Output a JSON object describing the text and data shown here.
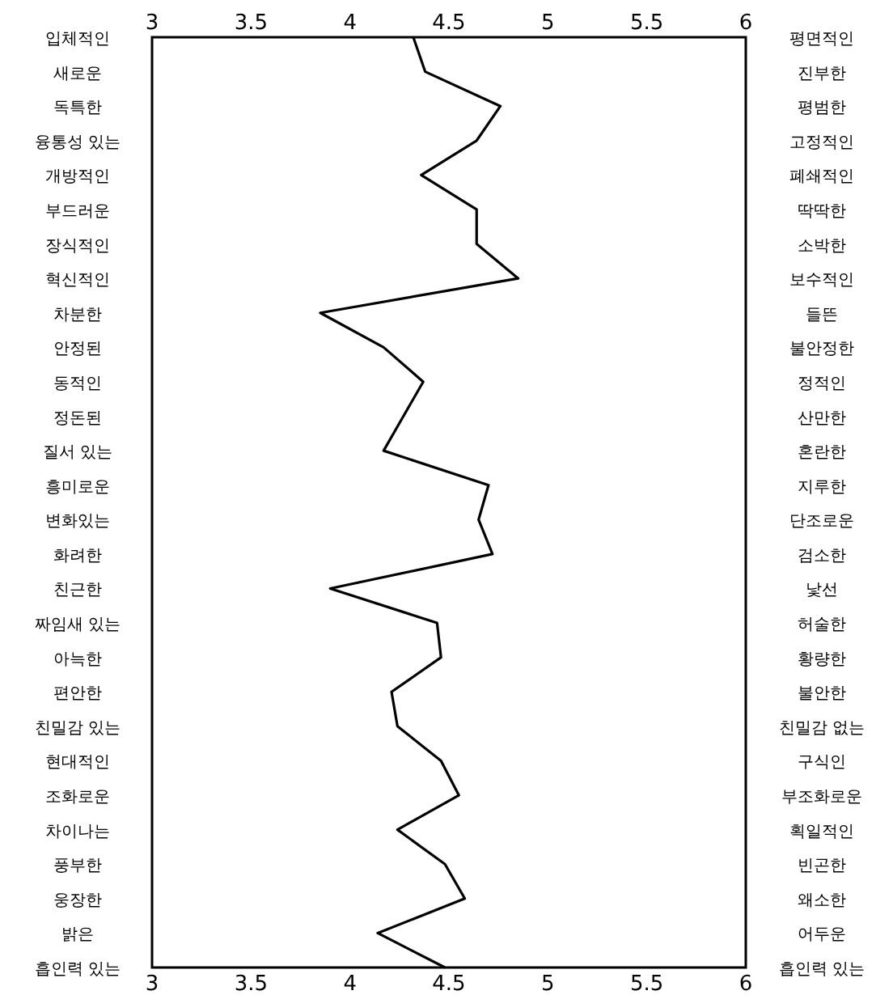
{
  "chart_data": {
    "type": "line",
    "orientation": "horizontal",
    "categories": [
      "입체적인",
      "새로운",
      "독특한",
      "융통성 있는",
      "개방적인",
      "부드러운",
      "장식적인",
      "혁신적인",
      "차분한",
      "안정된",
      "동적인",
      "정돈된",
      "질서 있는",
      "흥미로운",
      "변화있는",
      "화려한",
      "친근한",
      "짜임새 있는",
      "아늑한",
      "편안한",
      "친밀감 있는",
      "현대적인",
      "조화로운",
      "차이나는",
      "풍부한",
      "웅장한",
      "밝은",
      "흡인력 있는"
    ],
    "y2_categories": [
      "평면적인",
      "진부한",
      "평범한",
      "고정적인",
      "폐쇄적인",
      "딱딱한",
      "소박한",
      "보수적인",
      "들뜬",
      "불안정한",
      "정적인",
      "산만한",
      "혼란한",
      "지루한",
      "단조로운",
      "검소한",
      "낯선",
      "허술한",
      "황량한",
      "불안한",
      "친밀감 없는",
      "구식인",
      "부조화로운",
      "획일적인",
      "빈곤한",
      "왜소한",
      "어두운",
      "흡인력 있는"
    ],
    "series": [
      {
        "color": "#000000",
        "values": [
          4.32,
          4.38,
          4.76,
          4.64,
          4.36,
          4.64,
          4.64,
          4.85,
          3.85,
          4.17,
          4.37,
          4.27,
          4.17,
          4.7,
          4.65,
          4.72,
          3.9,
          4.44,
          4.46,
          4.21,
          4.24,
          4.46,
          4.55,
          4.24,
          4.48,
          4.58,
          4.14,
          4.48
        ]
      }
    ],
    "xlim": [
      3,
      6
    ],
    "xticks": [
      3,
      3.5,
      4,
      4.5,
      5,
      5.5,
      6
    ],
    "x2lim": [
      3,
      6
    ],
    "x2ticks": [
      3,
      3.5,
      4,
      4.5,
      5,
      5.5,
      6
    ],
    "grid": false,
    "marker": "none",
    "line_style": "solid"
  }
}
